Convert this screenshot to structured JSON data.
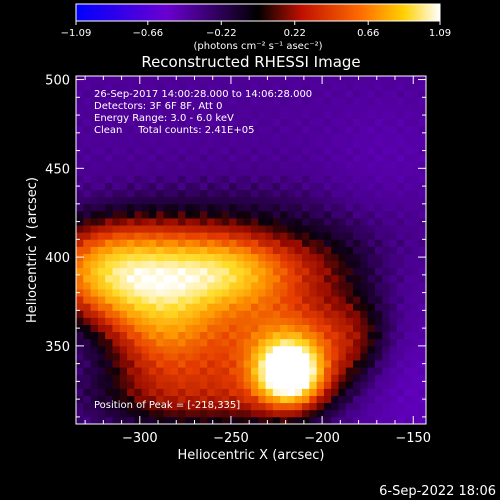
{
  "chart_data": {
    "type": "heatmap",
    "title": "Reconstructed RHESSI Image",
    "xlabel": "Heliocentric X (arcsec)",
    "ylabel": "Heliocentric Y (arcsec)",
    "xlim": [
      -335,
      -143
    ],
    "ylim": [
      306,
      502
    ],
    "x_ticks": [
      -300,
      -250,
      -200,
      -150
    ],
    "x_tick_labels": [
      "−300",
      "−250",
      "−200",
      "−150"
    ],
    "y_ticks": [
      350,
      400,
      450,
      500
    ],
    "y_tick_labels": [
      "350",
      "400",
      "450",
      "500"
    ],
    "colorbar": {
      "range": [
        -1.09,
        1.09
      ],
      "ticks": [
        -1.09,
        -0.66,
        -0.22,
        0.22,
        0.66,
        1.09
      ],
      "tick_labels": [
        "−1.09",
        "−0.66",
        "−0.22",
        "0.22",
        "0.66",
        "1.09"
      ],
      "unit_label": "(photons cm⁻² s⁻¹ asec⁻²)"
    },
    "annotations": [
      "26-Sep-2017 14:00:28.000 to 14:06:28.000",
      "Detectors: 3F 6F 8F, Att 0",
      "Energy Range: 3.0 - 6.0 keV",
      "Clean     Total counts: 2.41E+05"
    ],
    "peak_label": "Position of Peak = [-218,335]",
    "peak": [
      -218,
      335
    ],
    "sources": [
      {
        "x": -218,
        "y": 335,
        "value": 1.09
      },
      {
        "x": -285,
        "y": 365,
        "value": 0.85
      },
      {
        "x": -315,
        "y": 390,
        "value": 0.55
      },
      {
        "x": -250,
        "y": 390,
        "value": 0.45
      }
    ],
    "grid": false
  },
  "footer": {
    "date": "6-Sep-2022 18:06"
  }
}
